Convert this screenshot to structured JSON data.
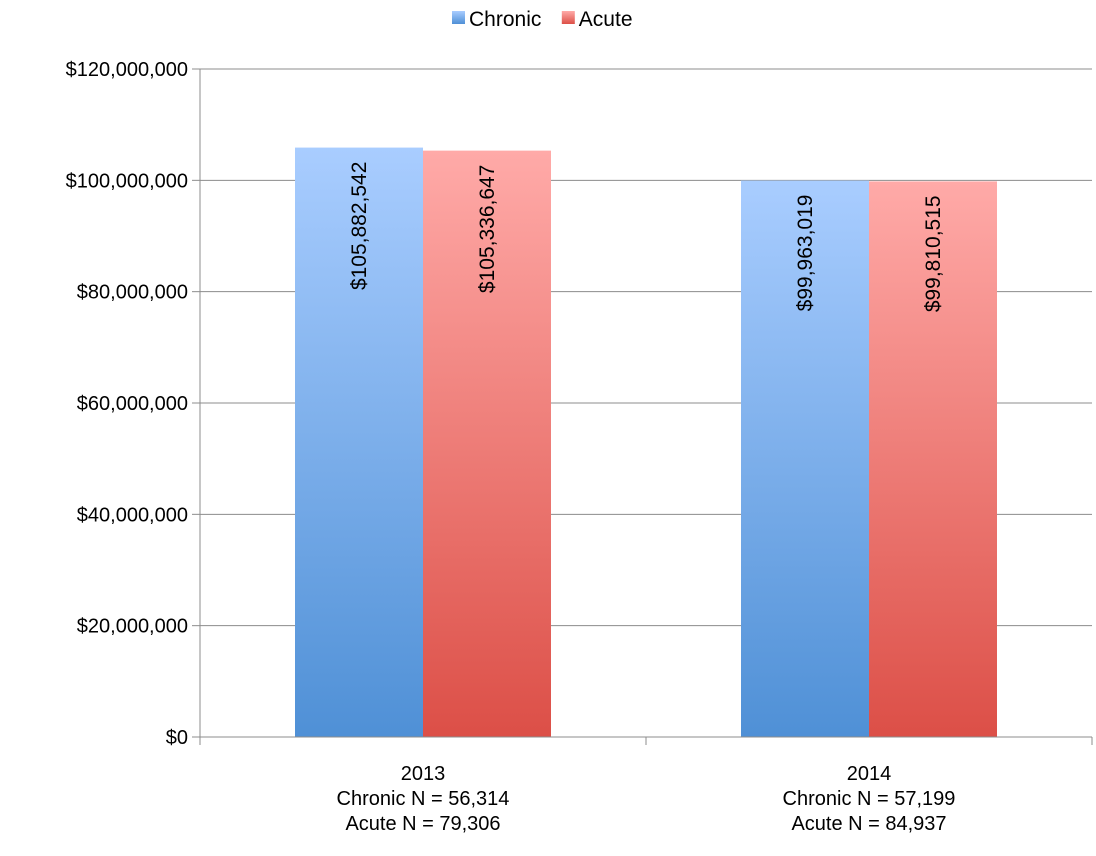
{
  "chart_data": {
    "type": "bar",
    "categories": [
      "2013",
      "2014"
    ],
    "category_sublabels": [
      [
        "Chronic N = 56,314",
        "Acute N = 79,306"
      ],
      [
        "Chronic N = 57,199",
        "Acute N = 84,937"
      ]
    ],
    "series": [
      {
        "name": "Chronic",
        "values": [
          105882542,
          99963019
        ],
        "labels": [
          "$105,882,542",
          "$99,963,019"
        ],
        "color": "#5b9bd5",
        "color_top": "#a9cdff",
        "color_bottom": "#4f90d6"
      },
      {
        "name": "Acute",
        "values": [
          105336647,
          99810515
        ],
        "labels": [
          "$105,336,647",
          "$99,810,515"
        ],
        "color": "#e06666",
        "color_top": "#ffaaa8",
        "color_bottom": "#dc4f47"
      }
    ],
    "yticks": [
      "$0",
      "$20,000,000",
      "$40,000,000",
      "$60,000,000",
      "$80,000,000",
      "$100,000,000",
      "$120,000,000"
    ],
    "ylim": [
      0,
      120000000
    ],
    "ytick_step": 20000000,
    "legend_position": "top",
    "grid": true,
    "title": "",
    "xlabel": "",
    "ylabel": ""
  }
}
